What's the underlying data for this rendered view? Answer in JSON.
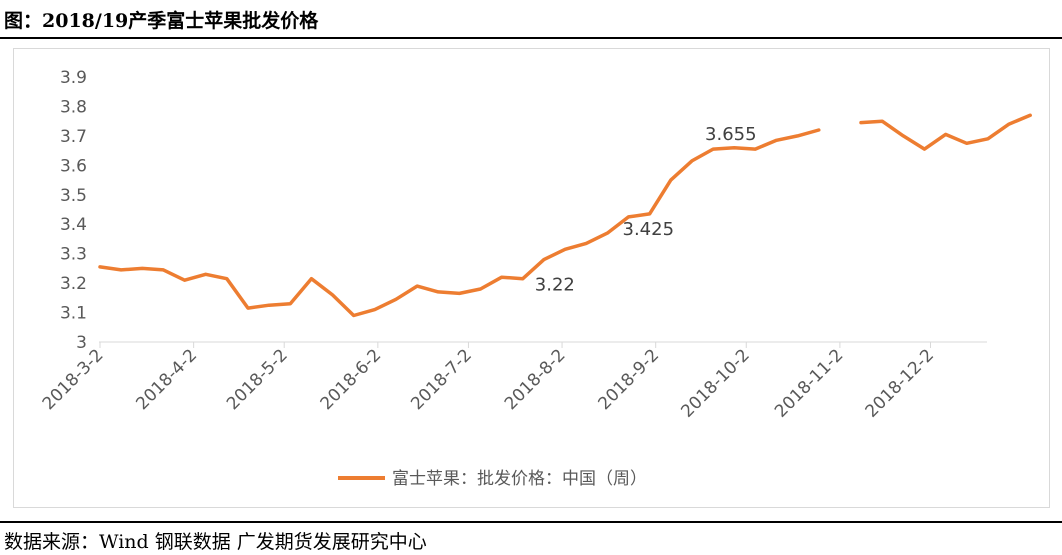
{
  "figure_title": "图：2018/19产季富士苹果批发价格",
  "source": "数据来源：Wind 钢联数据 广发期货发展研究中心",
  "chart_data": {
    "type": "line",
    "title": "",
    "xlabel": "",
    "ylabel": "",
    "ylim": [
      3,
      3.9
    ],
    "yticks": [
      "3",
      "3.1",
      "3.2",
      "3.3",
      "3.4",
      "3.5",
      "3.6",
      "3.7",
      "3.8",
      "3.9"
    ],
    "xticks": [
      "2018-3-2",
      "2018-4-2",
      "2018-5-2",
      "2018-6-2",
      "2018-7-2",
      "2018-8-2",
      "2018-9-2",
      "2018-10-2",
      "2018-11-2",
      "2018-12-2"
    ],
    "grid": false,
    "legend_position": "bottom",
    "series": [
      {
        "name": "富士苹果：批发价格：中国（周）",
        "color": "#ed7d31",
        "points": [
          {
            "x": "2018-03-02",
            "y": 3.255
          },
          {
            "x": "2018-03-09",
            "y": 3.245
          },
          {
            "x": "2018-03-16",
            "y": 3.25
          },
          {
            "x": "2018-03-23",
            "y": 3.245
          },
          {
            "x": "2018-03-30",
            "y": 3.21
          },
          {
            "x": "2018-04-06",
            "y": 3.23
          },
          {
            "x": "2018-04-13",
            "y": 3.215
          },
          {
            "x": "2018-04-20",
            "y": 3.115
          },
          {
            "x": "2018-04-27",
            "y": 3.125
          },
          {
            "x": "2018-05-04",
            "y": 3.13
          },
          {
            "x": "2018-05-11",
            "y": 3.215
          },
          {
            "x": "2018-05-18",
            "y": 3.16
          },
          {
            "x": "2018-05-25",
            "y": 3.09
          },
          {
            "x": "2018-06-01",
            "y": 3.11
          },
          {
            "x": "2018-06-08",
            "y": 3.145
          },
          {
            "x": "2018-06-15",
            "y": 3.19
          },
          {
            "x": "2018-06-22",
            "y": 3.17
          },
          {
            "x": "2018-06-29",
            "y": 3.165
          },
          {
            "x": "2018-07-06",
            "y": 3.18
          },
          {
            "x": "2018-07-13",
            "y": 3.22
          },
          {
            "x": "2018-07-20",
            "y": 3.215
          },
          {
            "x": "2018-07-27",
            "y": 3.28
          },
          {
            "x": "2018-08-03",
            "y": 3.315
          },
          {
            "x": "2018-08-10",
            "y": 3.335
          },
          {
            "x": "2018-08-17",
            "y": 3.37
          },
          {
            "x": "2018-08-24",
            "y": 3.425
          },
          {
            "x": "2018-08-31",
            "y": 3.435
          },
          {
            "x": "2018-09-07",
            "y": 3.55
          },
          {
            "x": "2018-09-14",
            "y": 3.615
          },
          {
            "x": "2018-09-21",
            "y": 3.655
          },
          {
            "x": "2018-09-28",
            "y": 3.66
          },
          {
            "x": "2018-10-05",
            "y": 3.655
          },
          {
            "x": "2018-10-12",
            "y": 3.685
          },
          {
            "x": "2018-10-19",
            "y": 3.7
          },
          {
            "x": "2018-10-26",
            "y": 3.72
          },
          {
            "x": "2018-11-02",
            "y": null
          },
          {
            "x": "2018-11-09",
            "y": 3.745
          },
          {
            "x": "2018-11-16",
            "y": 3.75
          },
          {
            "x": "2018-11-23",
            "y": 3.7
          },
          {
            "x": "2018-11-30",
            "y": 3.655
          },
          {
            "x": "2018-12-07",
            "y": 3.705
          },
          {
            "x": "2018-12-14",
            "y": 3.675
          },
          {
            "x": "2018-12-21",
            "y": 3.69
          },
          {
            "x": "2018-12-28",
            "y": 3.74
          },
          {
            "x": "2019-01-04",
            "y": 3.77
          }
        ]
      }
    ],
    "annotations": [
      {
        "text": "3.22",
        "x": "2018-07-20",
        "y": 3.215
      },
      {
        "text": "3.425",
        "x": "2018-08-24",
        "y": 3.425
      },
      {
        "text": "3.655",
        "x": "2018-09-21",
        "y": 3.655
      }
    ]
  }
}
